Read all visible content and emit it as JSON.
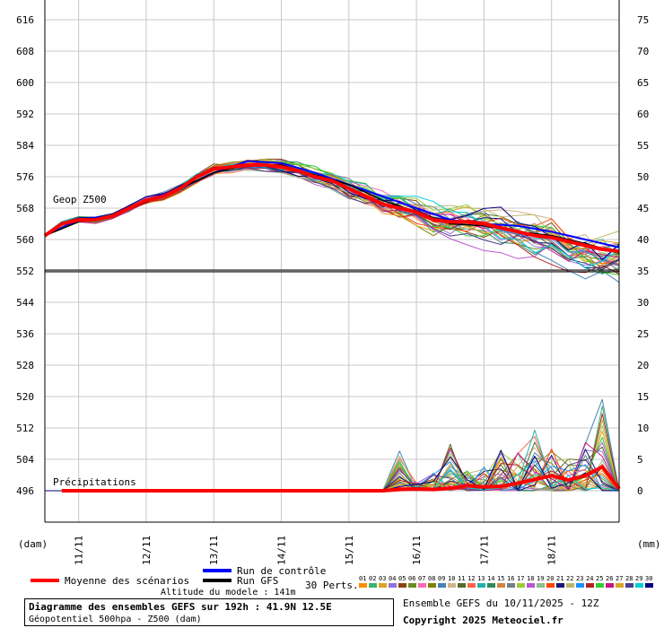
{
  "chart_data": {
    "type": "line",
    "title": "Diagramme des ensembles GEFS sur 192h : 41.9N 12.5E",
    "subtitle": "Géopotentiel 500hpa - Z500 (dam)",
    "left_axis_unit": "(dam)",
    "right_axis_unit": "(mm)",
    "left_ticks": [
      616,
      608,
      600,
      592,
      584,
      576,
      568,
      560,
      552,
      544,
      536,
      528,
      520,
      512,
      504,
      496
    ],
    "right_ticks": [
      75,
      70,
      65,
      60,
      55,
      50,
      45,
      40,
      35,
      30,
      25,
      20,
      15,
      10,
      5,
      0
    ],
    "ylim_left": [
      488,
      618
    ],
    "ylim_right": [
      -5,
      77
    ],
    "x_labels": [
      "11/11",
      "12/11",
      "13/11",
      "14/11",
      "15/11",
      "16/11",
      "17/11",
      "18/11"
    ],
    "x_hours_start": -12,
    "x_hours_end": 192,
    "panel_labels": {
      "geop": "Geop Z500",
      "precip": "Précipitations"
    },
    "geop_mean": {
      "hours": [
        -12,
        -6,
        0,
        6,
        12,
        18,
        24,
        30,
        36,
        42,
        48,
        54,
        60,
        66,
        72,
        78,
        84,
        90,
        96,
        102,
        108,
        114,
        120,
        126,
        132,
        138,
        144,
        150,
        156,
        162,
        168,
        174,
        180,
        186,
        192
      ],
      "values": [
        561,
        564,
        565,
        565,
        566,
        568,
        570,
        571,
        573,
        576,
        578,
        578.5,
        579,
        579,
        578.5,
        577.5,
        576,
        575,
        573,
        571,
        569,
        568,
        567,
        565,
        564.5,
        564.5,
        564,
        563,
        562,
        561,
        560.5,
        559.5,
        558.5,
        557.5,
        557
      ]
    },
    "geop_control": {
      "hours": [
        -12,
        0,
        12,
        24,
        36,
        48,
        60,
        72,
        84,
        96,
        108,
        120,
        132,
        144,
        156,
        168,
        180,
        192
      ],
      "values": [
        561,
        565,
        566,
        570,
        573,
        577,
        580,
        579.5,
        577,
        574,
        571,
        568,
        565,
        564,
        563.5,
        562,
        560,
        558
      ]
    },
    "geop_gfs": {
      "hours": [
        -12,
        0,
        12,
        24,
        36,
        48,
        60,
        72,
        84,
        96,
        108,
        120,
        132,
        144,
        156,
        168,
        180,
        192
      ],
      "values": [
        561,
        564.5,
        566,
        569.5,
        573,
        577,
        579,
        579,
        576.5,
        574,
        570,
        567,
        564,
        563.5,
        562,
        561,
        559,
        556.5
      ]
    },
    "precip_mean": {
      "hours": [
        -12,
        0,
        24,
        48,
        72,
        96,
        108,
        114,
        120,
        126,
        132,
        138,
        144,
        150,
        156,
        162,
        168,
        174,
        180,
        186,
        192
      ],
      "values": [
        0,
        0,
        0,
        0,
        0,
        0,
        0,
        0.2,
        0.3,
        0.2,
        0.4,
        0.8,
        0.6,
        0.7,
        1.2,
        1.8,
        2.4,
        1.7,
        2.4,
        3.8,
        0.3
      ]
    },
    "precip_max_envelope": {
      "hours": [
        -12,
        108,
        114,
        120,
        126,
        132,
        138,
        144,
        150,
        156,
        162,
        168,
        174,
        180,
        186,
        192
      ],
      "values": [
        0,
        0,
        6.5,
        1.5,
        2.8,
        8.2,
        3.2,
        4.0,
        6.5,
        7.8,
        10.5,
        7.2,
        5.5,
        8.2,
        15.5,
        3.5
      ]
    },
    "perturbations_count": 30
  },
  "legend": {
    "mean_label": "Moyenne des scénarios",
    "control_label": "Run de contrôle",
    "gfs_label": "Run GFS",
    "perts_label": "30 Perts.",
    "mean_color": "#ff0000",
    "control_color": "#0000ff",
    "gfs_color": "#000000",
    "pert_numbers": [
      "01",
      "02",
      "03",
      "04",
      "05",
      "06",
      "07",
      "08",
      "09",
      "10",
      "11",
      "12",
      "13",
      "14",
      "15",
      "16",
      "17",
      "18",
      "19",
      "20",
      "21",
      "22",
      "23",
      "24",
      "25",
      "26",
      "27",
      "28",
      "29",
      "30"
    ],
    "pert_colors": [
      "#ff8c00",
      "#3cb371",
      "#daa520",
      "#9370db",
      "#8b4513",
      "#6b8e23",
      "#ff69b4",
      "#808000",
      "#4682b4",
      "#d2b48c",
      "#556b2f",
      "#ff6347",
      "#20b2aa",
      "#2e8b57",
      "#cd853f",
      "#708090",
      "#9acd32",
      "#ba55d3",
      "#8fbc8f",
      "#ff4500",
      "#191970",
      "#bdb76b",
      "#1e90ff",
      "#b22222",
      "#32cd32",
      "#c71585",
      "#daa520",
      "#483d8b",
      "#00ced1",
      "#000080"
    ]
  },
  "footer": {
    "altitude": "Altitude du modele : 141m",
    "title": "Diagramme des ensembles GEFS sur 192h : 41.9N 12.5E",
    "subtitle": "Géopotentiel 500hpa - Z500 (dam)",
    "run": "Ensemble GEFS du 10/11/2025 - 12Z",
    "copyright": "Copyright 2025 Meteociel.fr"
  }
}
